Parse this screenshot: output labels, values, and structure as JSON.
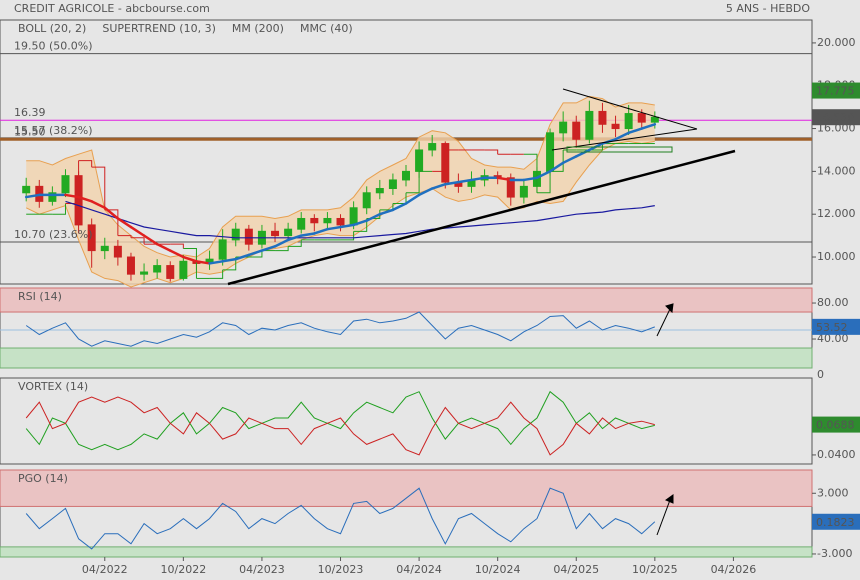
{
  "chart_data": [
    {
      "type": "candlestick",
      "title": "CREDIT AGRICOLE - abcbourse.com",
      "subtitle": "5 ANS - HEBDO",
      "x": [
        "10/2021",
        "11/2021",
        "12/2021",
        "01/2022",
        "02/2022",
        "03/2022",
        "04/2022",
        "05/2022",
        "06/2022",
        "07/2022",
        "08/2022",
        "09/2022",
        "10/2022",
        "11/2022",
        "12/2022",
        "01/2023",
        "02/2023",
        "03/2023",
        "04/2023",
        "05/2023",
        "06/2023",
        "07/2023",
        "08/2023",
        "09/2023",
        "10/2023",
        "11/2023",
        "12/2023",
        "01/2024",
        "02/2024",
        "03/2024",
        "04/2024",
        "05/2024",
        "06/2024",
        "07/2024",
        "08/2024",
        "09/2024",
        "10/2024",
        "11/2024",
        "12/2024",
        "01/2025",
        "02/2025",
        "03/2025",
        "04/2025",
        "05/2025",
        "06/2025",
        "07/2025",
        "08/2025",
        "09/2025",
        "10/2025"
      ],
      "xlim": [
        "08/2021",
        "10/2026"
      ],
      "xticks": [
        "04/2022",
        "10/2022",
        "04/2023",
        "10/2023",
        "04/2024",
        "10/2024",
        "04/2025",
        "10/2025",
        "04/2026"
      ],
      "ylim": [
        8.74,
        21.07
      ],
      "yticks": [
        {
          "value": 20,
          "label": "20.000"
        },
        {
          "value": 18,
          "label": "18.000"
        },
        {
          "value": 16,
          "label": "16.000"
        },
        {
          "value": 14,
          "label": "14.000"
        },
        {
          "value": 12,
          "label": "12.000"
        },
        {
          "value": 10,
          "label": "10.000"
        }
      ],
      "candles": {
        "up_color": "#22aa22",
        "down_color": "#cc2222",
        "open": [
          13.0,
          13.3,
          12.6,
          13.0,
          13.8,
          11.5,
          10.3,
          10.5,
          10.0,
          9.2,
          9.3,
          9.6,
          9.0,
          9.8,
          9.7,
          9.9,
          10.8,
          11.3,
          10.6,
          11.2,
          11.0,
          11.3,
          11.8,
          11.6,
          11.8,
          11.5,
          12.3,
          13.0,
          13.2,
          13.6,
          14.0,
          15.0,
          15.3,
          13.5,
          13.3,
          13.6,
          13.8,
          13.7,
          12.8,
          13.3,
          14.0,
          15.8,
          16.3,
          15.5,
          16.8,
          16.2,
          16.0,
          16.7,
          16.3
        ],
        "high": [
          13.7,
          13.6,
          13.3,
          14.1,
          14.0,
          11.8,
          10.9,
          10.8,
          10.2,
          9.7,
          9.9,
          9.8,
          10.1,
          10.2,
          10.3,
          11.3,
          11.6,
          11.5,
          11.5,
          11.6,
          11.6,
          12.1,
          12.0,
          12.1,
          12.0,
          12.6,
          13.3,
          13.6,
          13.9,
          14.3,
          15.4,
          15.7,
          15.4,
          13.9,
          14.0,
          14.1,
          14.0,
          13.9,
          13.6,
          14.2,
          16.0,
          16.8,
          16.6,
          17.3,
          17.2,
          16.6,
          17.1,
          16.9,
          16.8
        ],
        "low": [
          12.6,
          12.3,
          12.4,
          12.8,
          11.1,
          9.5,
          9.9,
          9.6,
          8.9,
          8.9,
          9.0,
          8.85,
          8.9,
          9.4,
          9.4,
          9.6,
          10.5,
          10.3,
          10.4,
          10.7,
          10.8,
          11.1,
          11.2,
          11.3,
          11.2,
          11.3,
          12.0,
          12.7,
          12.9,
          13.3,
          13.7,
          14.7,
          13.2,
          13.0,
          13.0,
          13.3,
          13.4,
          12.4,
          12.5,
          13.0,
          13.8,
          15.4,
          15.1,
          15.3,
          15.8,
          15.6,
          15.7,
          16.0,
          16.0
        ],
        "close": [
          13.3,
          12.6,
          13.0,
          13.8,
          11.5,
          10.3,
          10.5,
          10.0,
          9.2,
          9.3,
          9.6,
          9.0,
          9.8,
          9.7,
          9.9,
          10.8,
          11.3,
          10.6,
          11.2,
          11.0,
          11.3,
          11.8,
          11.6,
          11.8,
          11.5,
          12.3,
          13.0,
          13.2,
          13.6,
          14.0,
          15.0,
          15.3,
          13.5,
          13.3,
          13.6,
          13.8,
          13.7,
          12.8,
          13.3,
          14.0,
          15.8,
          16.3,
          15.5,
          16.8,
          16.2,
          16.0,
          16.7,
          16.3,
          16.53
        ]
      },
      "series": [
        {
          "name": "BOLL (20, 2)",
          "color": "#e8a050",
          "fill": "#f3d3ad",
          "upper": [
            14.5,
            14.5,
            14.3,
            14.6,
            14.8,
            15.0,
            12.2,
            11.5,
            11.0,
            10.5,
            10.2,
            10.0,
            10.1,
            10.0,
            10.4,
            11.4,
            11.9,
            11.9,
            11.9,
            11.8,
            11.9,
            12.2,
            12.2,
            12.2,
            12.3,
            12.8,
            13.6,
            14.0,
            14.3,
            14.6,
            15.6,
            15.9,
            15.8,
            15.4,
            14.6,
            14.3,
            14.2,
            14.2,
            14.1,
            14.6,
            16.2,
            17.2,
            17.2,
            17.5,
            17.4,
            17.0,
            17.2,
            17.2,
            17.1
          ],
          "lower": [
            12.3,
            12.0,
            12.2,
            12.4,
            10.8,
            9.3,
            9.0,
            8.9,
            8.6,
            8.8,
            9.0,
            8.8,
            9.0,
            9.3,
            9.2,
            9.3,
            9.7,
            10.0,
            10.3,
            10.4,
            10.5,
            10.8,
            11.0,
            11.1,
            11.0,
            11.0,
            11.4,
            11.9,
            12.4,
            12.8,
            13.0,
            13.2,
            12.8,
            12.6,
            12.7,
            12.9,
            12.8,
            12.2,
            12.3,
            12.6,
            12.5,
            12.6,
            13.5,
            14.3,
            15.0,
            15.3,
            15.4,
            15.3,
            15.4
          ]
        },
        {
          "name": "SUPERTREND (10, 3)",
          "color": "#d02020",
          "up_color": "#20a020",
          "values": [
            12.0,
            12.0,
            12.0,
            12.5,
            14.5,
            14.2,
            12.2,
            11.0,
            10.9,
            10.6,
            10.6,
            10.6,
            10.4,
            9.0,
            9.0,
            9.4,
            10.0,
            10.0,
            10.3,
            10.3,
            10.5,
            10.8,
            10.8,
            10.8,
            10.8,
            11.2,
            11.8,
            12.2,
            12.5,
            13.0,
            14.0,
            14.0,
            15.0,
            15.0,
            15.0,
            15.0,
            14.8,
            14.8,
            14.8,
            13.0,
            14.0,
            15.0,
            15.0,
            15.0,
            15.3,
            15.3,
            15.3,
            15.3,
            15.3
          ]
        },
        {
          "name": "MM (200)",
          "color": "#1a1aa0",
          "values": [
            null,
            null,
            null,
            12.6,
            12.4,
            12.2,
            12.0,
            11.8,
            11.6,
            11.4,
            11.3,
            11.2,
            11.1,
            11.0,
            11.0,
            10.95,
            10.9,
            10.9,
            10.9,
            10.9,
            10.9,
            10.9,
            10.9,
            10.9,
            10.9,
            10.9,
            10.95,
            11.0,
            11.05,
            11.1,
            11.2,
            11.3,
            11.35,
            11.4,
            11.45,
            11.5,
            11.55,
            11.6,
            11.65,
            11.7,
            11.8,
            11.9,
            12.0,
            12.05,
            12.1,
            12.2,
            12.25,
            12.3,
            12.4
          ]
        },
        {
          "name": "MMC (40)",
          "color": "#2070c0",
          "falling_color": "#e02020",
          "values": [
            12.8,
            12.9,
            12.9,
            12.9,
            12.8,
            12.6,
            12.3,
            11.8,
            11.4,
            11.0,
            10.6,
            10.3,
            10.0,
            9.8,
            9.7,
            9.8,
            9.9,
            10.1,
            10.3,
            10.5,
            10.8,
            11.0,
            11.1,
            11.3,
            11.4,
            11.5,
            11.7,
            12.0,
            12.2,
            12.5,
            12.9,
            13.2,
            13.4,
            13.5,
            13.6,
            13.7,
            13.7,
            13.6,
            13.6,
            13.7,
            14.0,
            14.4,
            14.7,
            15.0,
            15.3,
            15.5,
            15.8,
            16.0,
            16.2
          ]
        }
      ],
      "levels": [
        {
          "value": 19.5,
          "label": "19.50 (50.0%)",
          "color": "#555555"
        },
        {
          "value": 16.39,
          "label": "16.39",
          "color": "#e020e0"
        },
        {
          "value": 15.57,
          "label": "15.57 (38.2%)",
          "color": "#777777"
        },
        {
          "value": 15.5,
          "label": "15.50",
          "color": "#a0602a",
          "thick": true
        },
        {
          "value": 10.7,
          "label": "10.70 (23.6%)",
          "color": "#555555"
        }
      ],
      "tags": [
        {
          "value": 17.775,
          "label": "17.775",
          "color": "#2e8b2e"
        },
        {
          "value": 16.53,
          "label": "16.530",
          "color": "#555555"
        }
      ]
    },
    {
      "type": "line",
      "title": "RSI (14)",
      "ylim": [
        7.8,
        96.7
      ],
      "yticks": [
        {
          "value": 80,
          "label": "80.00"
        },
        {
          "value": 40,
          "label": "40.00"
        },
        0
      ],
      "upper_zone": 70,
      "lower_zone": 30,
      "midline": 50,
      "series": [
        {
          "color": "#2a6ebb",
          "values": [
            55,
            45,
            52,
            58,
            40,
            32,
            38,
            35,
            32,
            38,
            35,
            40,
            45,
            42,
            48,
            58,
            55,
            45,
            52,
            50,
            55,
            58,
            52,
            48,
            45,
            60,
            62,
            58,
            60,
            63,
            70,
            55,
            40,
            52,
            55,
            50,
            45,
            38,
            48,
            55,
            65,
            66,
            52,
            60,
            50,
            55,
            52,
            48,
            53.52
          ]
        }
      ],
      "tags": [
        {
          "value": 53.52,
          "label": "53.52",
          "color": "#2a6ebb"
        }
      ]
    },
    {
      "type": "line",
      "title": "VORTEX (14)",
      "ylim": [
        0.0314,
        0.113
      ],
      "yticks": [
        {
          "value": 0.04,
          "label": "0.0400"
        }
      ],
      "series": [
        {
          "color": "#20a020",
          "values": [
            0.065,
            0.05,
            0.075,
            0.07,
            0.05,
            0.045,
            0.05,
            0.045,
            0.05,
            0.06,
            0.055,
            0.07,
            0.08,
            0.06,
            0.07,
            0.085,
            0.08,
            0.065,
            0.07,
            0.075,
            0.075,
            0.09,
            0.075,
            0.07,
            0.065,
            0.08,
            0.09,
            0.085,
            0.08,
            0.095,
            0.1,
            0.075,
            0.055,
            0.07,
            0.075,
            0.07,
            0.065,
            0.05,
            0.065,
            0.075,
            0.1,
            0.09,
            0.07,
            0.08,
            0.065,
            0.075,
            0.07,
            0.065,
            0.068
          ]
        },
        {
          "color": "#cc2222",
          "values": [
            0.075,
            0.09,
            0.065,
            0.07,
            0.09,
            0.095,
            0.09,
            0.095,
            0.09,
            0.08,
            0.085,
            0.07,
            0.06,
            0.08,
            0.07,
            0.055,
            0.06,
            0.075,
            0.07,
            0.065,
            0.065,
            0.05,
            0.065,
            0.07,
            0.075,
            0.06,
            0.05,
            0.055,
            0.06,
            0.045,
            0.04,
            0.065,
            0.085,
            0.07,
            0.065,
            0.07,
            0.075,
            0.09,
            0.075,
            0.065,
            0.04,
            0.05,
            0.07,
            0.06,
            0.075,
            0.065,
            0.07,
            0.072,
            0.0688
          ]
        }
      ],
      "tags": [
        {
          "value": 0.0688,
          "label": "0.0688",
          "color": "#2e8b2e"
        }
      ]
    },
    {
      "type": "line",
      "title": "PGO (14)",
      "ylim": [
        -3.3,
        5.3
      ],
      "yticks": [
        {
          "value": 3,
          "label": "3.000"
        },
        {
          "value": -3,
          "label": "-3.000"
        }
      ],
      "upper_zone": 1.7,
      "lower_zone": -2.3,
      "series": [
        {
          "color": "#2a6ebb",
          "values": [
            1.0,
            -0.5,
            0.5,
            1.5,
            -1.5,
            -2.5,
            -1.0,
            -1.0,
            -2.0,
            0.0,
            -1.0,
            -0.5,
            0.5,
            -0.5,
            0.5,
            2.0,
            1.2,
            -0.5,
            0.5,
            0.0,
            1.0,
            1.8,
            0.5,
            -0.5,
            -1.0,
            2.0,
            2.2,
            1.0,
            1.5,
            2.5,
            3.5,
            0.5,
            -2.0,
            0.5,
            1.0,
            0.0,
            -1.0,
            -1.8,
            -0.5,
            0.5,
            3.5,
            3.0,
            -0.5,
            1.0,
            -0.5,
            0.5,
            0.0,
            -1.0,
            0.1823
          ]
        }
      ],
      "tags": [
        {
          "value": 0.1823,
          "label": "0.1823",
          "color": "#2a6ebb"
        }
      ]
    }
  ]
}
